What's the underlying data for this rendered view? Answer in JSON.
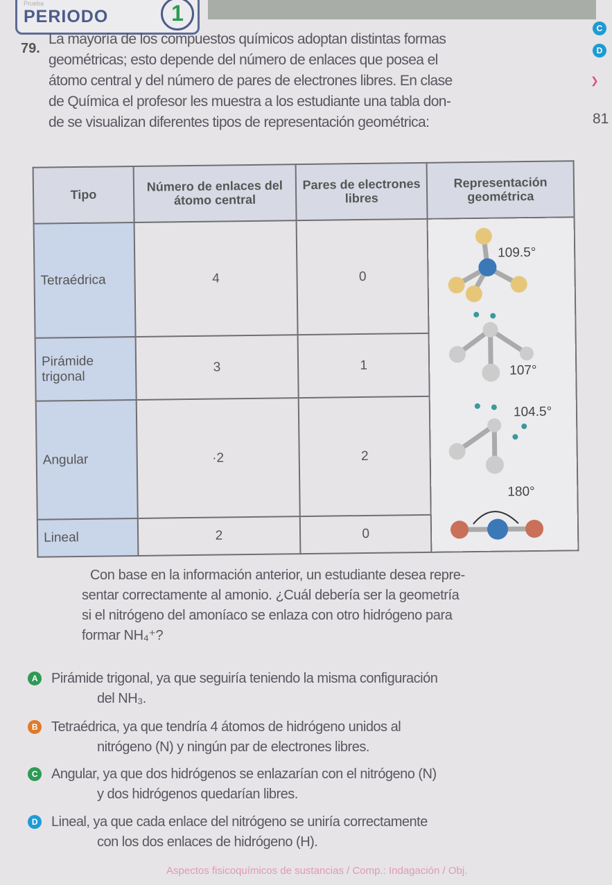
{
  "header": {
    "prueba": "Prueba",
    "periodo": "PERIODO",
    "period_number": "1"
  },
  "question": {
    "number": "79.",
    "lines": [
      "La mayoría de los compuestos químicos adoptan distintas formas",
      "geométricas; esto depende del número de enlaces que posea el",
      "átomo central y del número de pares de electrones libres. En clase",
      "de Química el profesor les muestra a los estudiante una tabla don-",
      "de se visualizan diferentes tipos de representación geométrica:"
    ]
  },
  "side": {
    "c": "C",
    "d": "D",
    "page": "81"
  },
  "table": {
    "headers": [
      "Tipo",
      "Número de enlaces del átomo central",
      "Pares de electrones libres",
      "Representación geométrica"
    ],
    "rows": [
      {
        "tipo": "Tetraédrica",
        "enlaces": "4",
        "pares": "0",
        "angle": "109.5°"
      },
      {
        "tipo": "Pirámide trigonal",
        "enlaces": "3",
        "pares": "1",
        "angle": "107°"
      },
      {
        "tipo": "Angular",
        "enlaces": "·2",
        "pares": "2",
        "angle": "104.5°"
      },
      {
        "tipo": "Lineal",
        "enlaces": "2",
        "pares": "0",
        "angle": "180°"
      }
    ]
  },
  "followup": [
    "Con base en la información anterior, un estudiante desea repre-",
    "sentar correctamente al amonio. ¿Cuál debería ser la geometría",
    "si el nitrógeno del amoníaco se enlaza con otro hidrógeno para",
    "formar NH₄⁺?"
  ],
  "options": [
    {
      "letter": "A",
      "color": "#2e9a55",
      "lines": [
        "Pirámide trigonal, ya que seguiría teniendo la misma configuración",
        "del NH₃."
      ]
    },
    {
      "letter": "B",
      "color": "#e07a2a",
      "lines": [
        "Tetraédrica, ya que tendría 4 átomos de hidrógeno unidos al",
        "nitrógeno (N) y ningún par de electrones libres."
      ]
    },
    {
      "letter": "C",
      "color": "#2e9a55",
      "lines": [
        "Angular, ya que dos hidrógenos se enlazarían con el nitrógeno (N)",
        "y dos hidrógenos quedarían libres."
      ]
    },
    {
      "letter": "D",
      "color": "#1e9bd4",
      "lines": [
        "Lineal, ya que cada enlace del nitrógeno se uniría correctamente",
        "con los dos enlaces de hidrógeno (H)."
      ]
    }
  ],
  "footer": "Aspectos fisicoquímicos de sustancias / Comp.: Indagación / Obj."
}
